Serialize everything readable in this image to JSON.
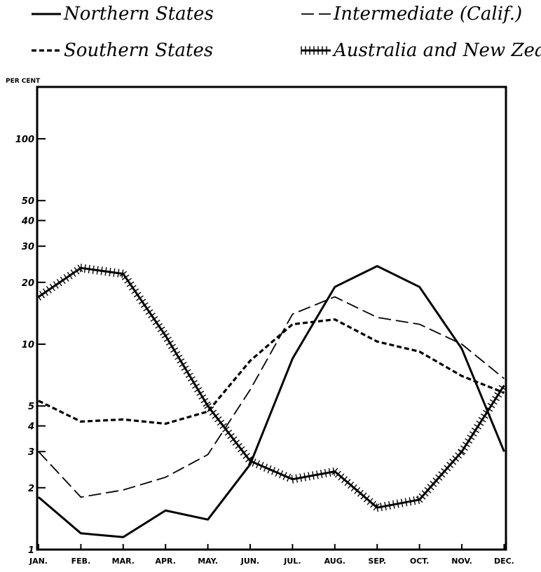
{
  "chart_data": {
    "type": "line",
    "title": "",
    "ylabel": "PER CENT",
    "xlabel": "",
    "yscale": "log",
    "ylim": [
      1,
      250
    ],
    "ytick_labels": [
      "1",
      "2",
      "3",
      "4",
      "5",
      "10",
      "20",
      "30",
      "40",
      "50",
      "100"
    ],
    "categories": [
      "JAN.",
      "FEB.",
      "MAR.",
      "APR.",
      "MAY.",
      "JUN.",
      "JUL.",
      "AUG.",
      "SEP.",
      "OCT.",
      "NOV.",
      "DEC."
    ],
    "legend_position": "top",
    "series": [
      {
        "name": "Northern States",
        "style": "solid",
        "values": [
          1.8,
          1.2,
          1.15,
          1.55,
          1.4,
          2.6,
          8.5,
          19,
          24,
          19,
          9.5,
          3.0
        ]
      },
      {
        "name": "Intermediate (Calif.)",
        "style": "dashed",
        "values": [
          3.0,
          1.8,
          1.95,
          2.25,
          2.9,
          6.0,
          14,
          17,
          13.5,
          12.5,
          10,
          6.8
        ]
      },
      {
        "name": "Southern States",
        "style": "dotted",
        "values": [
          5.3,
          4.2,
          4.3,
          4.1,
          4.7,
          8.3,
          12.5,
          13.2,
          10.3,
          9.2,
          7.0,
          5.8
        ]
      },
      {
        "name": "Australia and New Zealand",
        "style": "hatched",
        "values": [
          17,
          23.5,
          22,
          11,
          5.0,
          2.7,
          2.2,
          2.4,
          1.6,
          1.75,
          3.0,
          6.3
        ]
      }
    ]
  }
}
